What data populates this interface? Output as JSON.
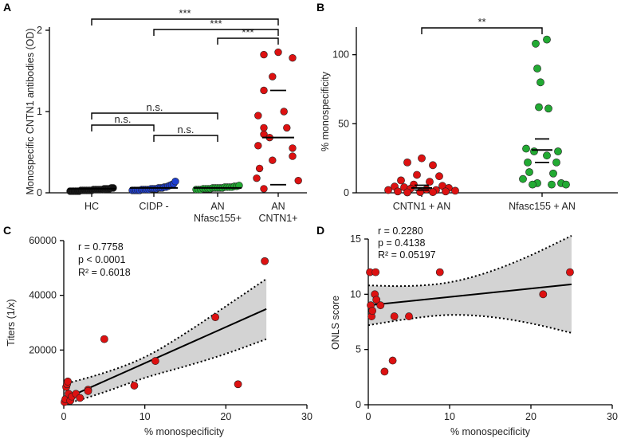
{
  "chart_data": [
    {
      "id": "A",
      "type": "scatter",
      "panel_label": "A",
      "ylabel": "Monospecific CNTN1 antibodies (OD)",
      "ylim": [
        0,
        2
      ],
      "yticks": [
        "0",
        "1",
        "2"
      ],
      "categories": [
        {
          "line1": "HC",
          "line2": ""
        },
        {
          "line1": "CIDP -",
          "line2": ""
        },
        {
          "line1": "AN",
          "line2": "Nfasc155+"
        },
        {
          "line1": "AN",
          "line2": "CNTN1+"
        }
      ],
      "groups": [
        {
          "name": "HC",
          "color": "#111111",
          "mean": 0.05,
          "values": [
            0.02,
            0.02,
            0.02,
            0.02,
            0.02,
            0.02,
            0.03,
            0.03,
            0.03,
            0.03,
            0.03,
            0.03,
            0.03,
            0.04,
            0.04,
            0.04,
            0.04,
            0.04,
            0.04,
            0.05,
            0.05,
            0.05,
            0.05,
            0.06,
            0.06
          ]
        },
        {
          "name": "CIDP -",
          "color": "#1f3fd0",
          "mean": 0.06,
          "values": [
            0.03,
            0.03,
            0.03,
            0.03,
            0.03,
            0.04,
            0.04,
            0.04,
            0.04,
            0.04,
            0.05,
            0.05,
            0.05,
            0.05,
            0.06,
            0.06,
            0.06,
            0.07,
            0.07,
            0.08,
            0.09,
            0.1,
            0.11,
            0.14
          ]
        },
        {
          "name": "AN Nfasc155+",
          "color": "#22aa33",
          "mean": 0.06,
          "values": [
            0.04,
            0.04,
            0.04,
            0.05,
            0.05,
            0.05,
            0.05,
            0.06,
            0.06,
            0.06,
            0.06,
            0.06,
            0.07,
            0.07,
            0.07,
            0.07,
            0.08,
            0.08,
            0.09
          ]
        },
        {
          "name": "AN CNTN1+",
          "color": "#dd1111",
          "mean": 0.68,
          "sem_upper": 1.26,
          "sem_lower": 0.1,
          "values": [
            1.73,
            1.7,
            1.66,
            1.43,
            1.26,
            1.0,
            0.95,
            0.8,
            0.8,
            0.72,
            0.68,
            0.58,
            0.55,
            0.45,
            0.4,
            0.3,
            0.18,
            0.15,
            0.05
          ]
        }
      ],
      "comparisons": [
        {
          "from": 0,
          "to": 3,
          "label": "***"
        },
        {
          "from": 1,
          "to": 3,
          "label": "***"
        },
        {
          "from": 2,
          "to": 3,
          "label": "***"
        },
        {
          "from": 0,
          "to": 2,
          "label": "n.s."
        },
        {
          "from": 0,
          "to": 1,
          "label": "n.s."
        },
        {
          "from": 1,
          "to": 2,
          "label": "n.s."
        }
      ]
    },
    {
      "id": "B",
      "type": "scatter",
      "panel_label": "B",
      "ylabel": "% monospecificity",
      "ylim": [
        0,
        120
      ],
      "yticks": [
        "0",
        "50",
        "100"
      ],
      "categories": [
        {
          "line1": "CNTN1 + AN",
          "line2": ""
        },
        {
          "line1": "Nfasc155 + AN",
          "line2": ""
        }
      ],
      "groups": [
        {
          "name": "CNTN1 + AN",
          "color": "#dd1111",
          "mean": 3.5,
          "sem_upper": 5.5,
          "sem_lower": 2,
          "values": [
            25,
            22,
            20,
            13,
            12,
            9,
            8,
            6,
            5,
            4.5,
            4,
            3.5,
            3,
            2.5,
            2,
            2,
            1.5,
            1,
            1,
            0.5,
            0.5,
            0.3
          ]
        },
        {
          "name": "Nfasc155 + AN",
          "color": "#22aa33",
          "mean": 31,
          "sem_upper": 39,
          "sem_lower": 22,
          "values": [
            111,
            108,
            90,
            80,
            62,
            61,
            32,
            30,
            30,
            27,
            22,
            22,
            15,
            14,
            10,
            7,
            7,
            6,
            6,
            6
          ]
        }
      ],
      "comparisons": [
        {
          "from": 0,
          "to": 1,
          "label": "**"
        }
      ]
    },
    {
      "id": "C",
      "type": "scatter",
      "panel_label": "C",
      "xlabel": "% monospecificity",
      "ylabel": "Titers (1/x)",
      "xlim": [
        0,
        30
      ],
      "ylim": [
        0,
        60000
      ],
      "xticks": [
        "0",
        "10",
        "20",
        "30"
      ],
      "yticks": [
        "20000",
        "40000",
        "60000"
      ],
      "stats": {
        "r": "r = 0.7758",
        "p": "p < 0.0001",
        "r2": "R² = 0.6018"
      },
      "fit": {
        "x0": 0,
        "y0": 2000,
        "x1": 25,
        "y1": 35000
      },
      "band_upper": [
        [
          0,
          7500
        ],
        [
          5,
          11500
        ],
        [
          10,
          17000
        ],
        [
          15,
          26000
        ],
        [
          20,
          36000
        ],
        [
          25,
          46000
        ]
      ],
      "band_lower": [
        [
          0,
          0
        ],
        [
          5,
          4500
        ],
        [
          10,
          10000
        ],
        [
          15,
          14000
        ],
        [
          20,
          18500
        ],
        [
          25,
          24000
        ]
      ],
      "points": [
        [
          0.1,
          1000
        ],
        [
          0.2,
          2000
        ],
        [
          0.3,
          6500
        ],
        [
          0.4,
          7500
        ],
        [
          0.5,
          8500
        ],
        [
          0.6,
          4000
        ],
        [
          0.8,
          1500
        ],
        [
          1,
          3000
        ],
        [
          1.5,
          4000
        ],
        [
          2,
          2500
        ],
        [
          3,
          5500
        ],
        [
          3,
          5000
        ],
        [
          5,
          24000
        ],
        [
          8.7,
          7000
        ],
        [
          11.3,
          16000
        ],
        [
          18.7,
          32000
        ],
        [
          21.5,
          7500
        ],
        [
          24.8,
          52500
        ]
      ],
      "color": "#dd1111"
    },
    {
      "id": "D",
      "type": "scatter",
      "panel_label": "D",
      "xlabel": "% monospecificity",
      "ylabel": "ONLS score",
      "xlim": [
        0,
        30
      ],
      "ylim": [
        0,
        15
      ],
      "xticks": [
        "0",
        "10",
        "20",
        "30"
      ],
      "yticks": [
        "0",
        "5",
        "10",
        "15"
      ],
      "stats": {
        "r": "r = 0.2280",
        "p": "p = 0.4138",
        "r2": "R² = 0.05197"
      },
      "fit": {
        "x0": 0,
        "y0": 9,
        "x1": 25,
        "y1": 10.9
      },
      "band_upper": [
        [
          0,
          10.8
        ],
        [
          5,
          10.7
        ],
        [
          10,
          11
        ],
        [
          15,
          12
        ],
        [
          20,
          13.5
        ],
        [
          25,
          15.3
        ]
      ],
      "band_lower": [
        [
          0,
          7.2
        ],
        [
          5,
          7.8
        ],
        [
          10,
          8.2
        ],
        [
          15,
          8
        ],
        [
          20,
          7.4
        ],
        [
          25,
          6.5
        ]
      ],
      "points": [
        [
          0.2,
          12
        ],
        [
          0.3,
          9
        ],
        [
          0.4,
          8
        ],
        [
          0.5,
          8.5
        ],
        [
          0.8,
          10
        ],
        [
          0.9,
          12
        ],
        [
          1,
          9.5
        ],
        [
          1.5,
          9
        ],
        [
          2,
          3
        ],
        [
          3,
          4
        ],
        [
          3.2,
          8
        ],
        [
          5,
          8
        ],
        [
          8.8,
          12
        ],
        [
          21.5,
          10
        ],
        [
          24.8,
          12
        ]
      ],
      "color": "#dd1111"
    }
  ]
}
